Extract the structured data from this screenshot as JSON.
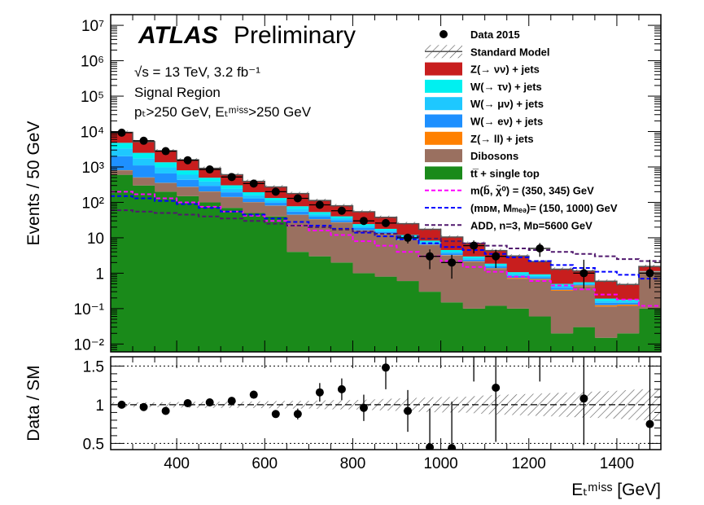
{
  "chart_data": [
    {
      "type": "stacked-histogram",
      "experiment": "ATLAS",
      "experiment_label": "Preliminary",
      "info": {
        "energy_line": "√s = 13 TeV, 3.2 fb⁻¹",
        "region": "Signal Region",
        "cuts": "pₜ>250 GeV, Eₜᵐⁱˢˢ>250 GeV"
      },
      "ylabel": "Events / 50 GeV",
      "yscale": "log",
      "ylim": [
        0.006,
        20000000
      ],
      "xlim": [
        250,
        1500
      ],
      "bin_edges": [
        250,
        300,
        350,
        400,
        450,
        500,
        550,
        600,
        650,
        700,
        750,
        800,
        850,
        900,
        950,
        1000,
        1050,
        1100,
        1150,
        1200,
        1250,
        1300,
        1350,
        1400,
        1450,
        1500
      ],
      "series": [
        {
          "name": "tt̅ + single top",
          "color": "#1a8a1a",
          "values": [
            600,
            300,
            200,
            150,
            100,
            70,
            50,
            40,
            4,
            3,
            2,
            1,
            0.8,
            0.6,
            0.3,
            0.15,
            0.1,
            0.12,
            0.1,
            0.06,
            0.02,
            0.03,
            0.015,
            0.02,
            0.1
          ]
        },
        {
          "name": "Dibosons",
          "color": "#9a7060",
          "values": [
            200,
            200,
            150,
            120,
            100,
            70,
            50,
            40,
            40,
            30,
            25,
            15,
            12,
            8,
            6,
            3,
            2,
            1.2,
            0.6,
            0.6,
            0.3,
            0.4,
            0.1,
            0.1,
            1.0
          ]
        },
        {
          "name": "Z(→ ll) + jets",
          "color": "#ff8000",
          "values": [
            10,
            7,
            5,
            4,
            3,
            2,
            1.5,
            1,
            0.7,
            0.5,
            0.4,
            0.3,
            0.2,
            0.15,
            0.1,
            0.08,
            0.06,
            0.05,
            0.04,
            0.03,
            0.02,
            0.02,
            0.01,
            0.01,
            0.01
          ]
        },
        {
          "name": "W(→ eν) + jets",
          "color": "#1e90ff",
          "values": [
            1200,
            600,
            300,
            160,
            90,
            50,
            28,
            16,
            10,
            6,
            4,
            2.5,
            1.5,
            1,
            0.6,
            0.4,
            0.25,
            0.15,
            0.1,
            0.07,
            0.05,
            0.03,
            0.02,
            0.015,
            0.01
          ]
        },
        {
          "name": "W(→ μν) + jets",
          "color": "#1ec8ff",
          "values": [
            1300,
            650,
            320,
            170,
            95,
            52,
            30,
            17,
            11,
            6.5,
            4.2,
            2.6,
            1.6,
            1.05,
            0.62,
            0.42,
            0.26,
            0.16,
            0.11,
            0.08,
            0.05,
            0.035,
            0.022,
            0.016,
            0.012
          ]
        },
        {
          "name": "W(→ τν) + jets",
          "color": "#00f0f0",
          "values": [
            1500,
            750,
            380,
            200,
            110,
            60,
            34,
            19,
            12,
            7.5,
            4.8,
            3,
            1.8,
            1.2,
            0.7,
            0.46,
            0.3,
            0.18,
            0.12,
            0.09,
            0.06,
            0.04,
            0.025,
            0.018,
            0.014
          ]
        },
        {
          "name": "Z(→ νν) + jets",
          "color": "#c81e1e",
          "values": [
            4700,
            2700,
            1500,
            780,
            420,
            300,
            200,
            140,
            100,
            60,
            40,
            30,
            20,
            13,
            9,
            6,
            4,
            2.5,
            2,
            1.2,
            0.8,
            0.6,
            0.4,
            0.3,
            0.4
          ]
        }
      ],
      "standard_model_label": "Standard Model",
      "data": {
        "name": "Data 2015",
        "x": [
          275,
          325,
          375,
          425,
          475,
          525,
          575,
          625,
          675,
          725,
          775,
          825,
          875,
          925,
          975,
          1025,
          1075,
          1125,
          1225,
          1325,
          1475
        ],
        "y": [
          9300,
          5500,
          2800,
          1550,
          850,
          520,
          340,
          200,
          130,
          85,
          58,
          30,
          26,
          10,
          3,
          2,
          6,
          3,
          5,
          1,
          1
        ],
        "err_low": [
          96,
          74,
          53,
          39,
          29,
          23,
          18,
          14,
          11,
          9,
          7.6,
          5.4,
          5,
          3.1,
          1.7,
          1.3,
          2.4,
          1.6,
          2.1,
          0.63,
          0.63
        ],
        "err_high": [
          96,
          74,
          53,
          39,
          29,
          23,
          18,
          14,
          11,
          9,
          7.6,
          5.4,
          5,
          3.1,
          1.7,
          1.3,
          2.4,
          1.6,
          2.1,
          1.4,
          1.4
        ]
      },
      "signals": [
        {
          "name": "m(b̃, χ̃⁰) = (350, 345) GeV",
          "color": "#ff00ff",
          "values": [
            200,
            170,
            130,
            100,
            75,
            55,
            42,
            30,
            22,
            16,
            12,
            8,
            6,
            4,
            3,
            2.2,
            1.5,
            1.1,
            0.8,
            0.6,
            0.45,
            0.35,
            0.25,
            0.18,
            0.12
          ]
        },
        {
          "name": "(mᴅᴍ, Mₘₑₔ)= (150, 1000) GeV",
          "color": "#0000ff",
          "values": [
            150,
            130,
            110,
            90,
            70,
            55,
            45,
            35,
            28,
            22,
            18,
            14,
            11,
            9,
            7,
            5.5,
            4.5,
            3.5,
            2.8,
            2.2,
            1.7,
            1.4,
            1.1,
            0.9,
            0.7
          ]
        },
        {
          "name": "ADD, n=3, Mᴅ=5600 GeV",
          "color": "#50186e",
          "values": [
            60,
            55,
            50,
            45,
            40,
            35,
            30,
            25,
            22,
            20,
            17,
            15,
            13,
            11,
            9.5,
            8,
            7,
            6,
            5,
            4.5,
            4,
            3.5,
            3,
            2.5,
            2.2
          ]
        }
      ],
      "yticks": [
        {
          "v": 0.01,
          "label": "10⁻²"
        },
        {
          "v": 0.1,
          "label": "10⁻¹"
        },
        {
          "v": 1,
          "label": "1"
        },
        {
          "v": 10,
          "label": "10"
        },
        {
          "v": 100,
          "label": "10²"
        },
        {
          "v": 1000,
          "label": "10³"
        },
        {
          "v": 10000,
          "label": "10⁴"
        },
        {
          "v": 100000,
          "label": "10⁵"
        },
        {
          "v": 1000000,
          "label": "10⁶"
        },
        {
          "v": 10000000,
          "label": "10⁷"
        }
      ]
    },
    {
      "type": "scatter",
      "ylabel": "Data / SM",
      "xlabel": "Eₜᵐⁱˢˢ [GeV]",
      "xlim": [
        250,
        1500
      ],
      "ylim": [
        0.42,
        1.62
      ],
      "xticks": [
        400,
        600,
        800,
        1000,
        1200,
        1400
      ],
      "yticks": [
        {
          "v": 0.5,
          "label": "0.5"
        },
        {
          "v": 1,
          "label": "1"
        },
        {
          "v": 1.5,
          "label": "1.5"
        }
      ],
      "reference_lines": [
        0.5,
        1,
        1.5
      ],
      "uncertainty_band": {
        "x": [
          250,
          300,
          350,
          400,
          450,
          500,
          550,
          600,
          650,
          700,
          750,
          800,
          850,
          900,
          950,
          1000,
          1050,
          1100,
          1150,
          1200,
          1250,
          1300,
          1350,
          1400,
          1450,
          1500
        ],
        "half_width": [
          0.03,
          0.03,
          0.03,
          0.035,
          0.04,
          0.04,
          0.04,
          0.045,
          0.05,
          0.05,
          0.06,
          0.06,
          0.07,
          0.08,
          0.09,
          0.1,
          0.1,
          0.12,
          0.13,
          0.14,
          0.15,
          0.16,
          0.17,
          0.18,
          0.2,
          0.2
        ]
      },
      "points": {
        "x": [
          275,
          325,
          375,
          425,
          475,
          525,
          575,
          625,
          675,
          725,
          775,
          825,
          875,
          925,
          975,
          1025,
          1125,
          1325,
          1475
        ],
        "y": [
          1.0,
          0.97,
          0.92,
          1.02,
          1.03,
          1.05,
          1.13,
          0.88,
          0.88,
          1.16,
          1.2,
          0.96,
          1.48,
          0.92,
          0.45,
          0.44,
          1.22,
          1.08,
          0.75
        ],
        "err_low": [
          0.02,
          0.02,
          0.02,
          0.03,
          0.03,
          0.03,
          0.05,
          0.05,
          0.07,
          0.12,
          0.14,
          0.17,
          0.28,
          0.27,
          0.3,
          0.3,
          0.7,
          0.6,
          0.4
        ],
        "err_high": [
          0.02,
          0.02,
          0.02,
          0.03,
          0.03,
          0.03,
          0.05,
          0.05,
          0.07,
          0.12,
          0.14,
          0.17,
          0.28,
          0.27,
          0.5,
          0.6,
          1.0,
          1.2,
          0.9
        ]
      },
      "offscale_arrows_x": [
        1075,
        1225
      ]
    }
  ]
}
